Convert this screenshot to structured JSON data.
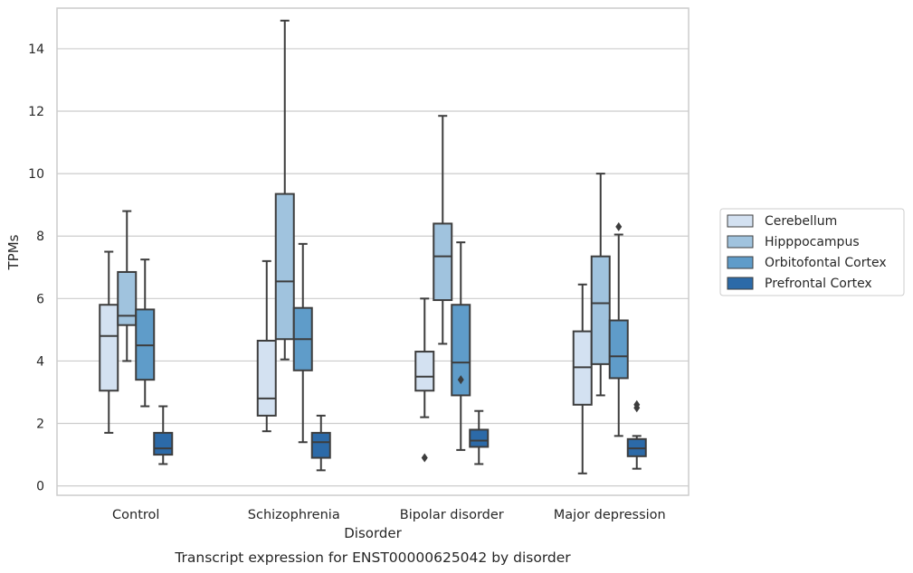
{
  "chart_data": {
    "type": "box",
    "title": "",
    "caption": "Transcript expression for ENST00000625042 by disorder",
    "xlabel": "Disorder",
    "ylabel": "TPMs",
    "ylim": [
      -0.3,
      15.3
    ],
    "yticks": [
      0,
      2,
      4,
      6,
      8,
      10,
      12,
      14
    ],
    "grid": "horizontal",
    "legend_position": "right",
    "categories": [
      "Control",
      "Schizophrenia",
      "Bipolar disorder",
      "Major depression"
    ],
    "series": [
      {
        "name": "Cerebellum",
        "color": "#d3e1f1",
        "boxes": [
          {
            "whislo": 1.7,
            "q1": 3.05,
            "med": 4.8,
            "q3": 5.8,
            "whishi": 7.5,
            "fliers": []
          },
          {
            "whislo": 1.75,
            "q1": 2.25,
            "med": 2.8,
            "q3": 4.65,
            "whishi": 7.2,
            "fliers": []
          },
          {
            "whislo": 2.2,
            "q1": 3.05,
            "med": 3.5,
            "q3": 4.3,
            "whishi": 6.0,
            "fliers": [
              0.9
            ]
          },
          {
            "whislo": 0.4,
            "q1": 2.6,
            "med": 3.8,
            "q3": 4.95,
            "whishi": 6.45,
            "fliers": []
          }
        ]
      },
      {
        "name": "Hipppocampus",
        "color": "#a0c3de",
        "boxes": [
          {
            "whislo": 4.0,
            "q1": 5.15,
            "med": 5.45,
            "q3": 6.85,
            "whishi": 8.8,
            "fliers": []
          },
          {
            "whislo": 4.05,
            "q1": 4.7,
            "med": 6.55,
            "q3": 9.35,
            "whishi": 14.9,
            "fliers": []
          },
          {
            "whislo": 4.55,
            "q1": 5.95,
            "med": 7.35,
            "q3": 8.4,
            "whishi": 11.85,
            "fliers": []
          },
          {
            "whislo": 2.9,
            "q1": 3.9,
            "med": 5.85,
            "q3": 7.35,
            "whishi": 10.0,
            "fliers": []
          }
        ]
      },
      {
        "name": "Orbitofontal Cortex",
        "color": "#5f9cc9",
        "boxes": [
          {
            "whislo": 2.55,
            "q1": 3.4,
            "med": 4.5,
            "q3": 5.65,
            "whishi": 7.25,
            "fliers": []
          },
          {
            "whislo": 1.4,
            "q1": 3.7,
            "med": 4.7,
            "q3": 5.7,
            "whishi": 7.75,
            "fliers": []
          },
          {
            "whislo": 1.15,
            "q1": 2.9,
            "med": 3.95,
            "q3": 5.8,
            "whishi": 7.8,
            "fliers": [
              3.4
            ]
          },
          {
            "whislo": 1.6,
            "q1": 3.45,
            "med": 4.15,
            "q3": 5.3,
            "whishi": 8.05,
            "fliers": [
              8.3
            ]
          }
        ]
      },
      {
        "name": "Prefrontal Cortex",
        "color": "#2c6aa8",
        "boxes": [
          {
            "whislo": 0.7,
            "q1": 1.0,
            "med": 1.2,
            "q3": 1.7,
            "whishi": 2.55,
            "fliers": []
          },
          {
            "whislo": 0.5,
            "q1": 0.9,
            "med": 1.4,
            "q3": 1.7,
            "whishi": 2.25,
            "fliers": []
          },
          {
            "whislo": 0.7,
            "q1": 1.25,
            "med": 1.45,
            "q3": 1.8,
            "whishi": 2.4,
            "fliers": []
          },
          {
            "whislo": 0.55,
            "q1": 0.95,
            "med": 1.2,
            "q3": 1.5,
            "whishi": 1.6,
            "fliers": [
              2.5,
              2.6
            ]
          }
        ]
      }
    ]
  }
}
